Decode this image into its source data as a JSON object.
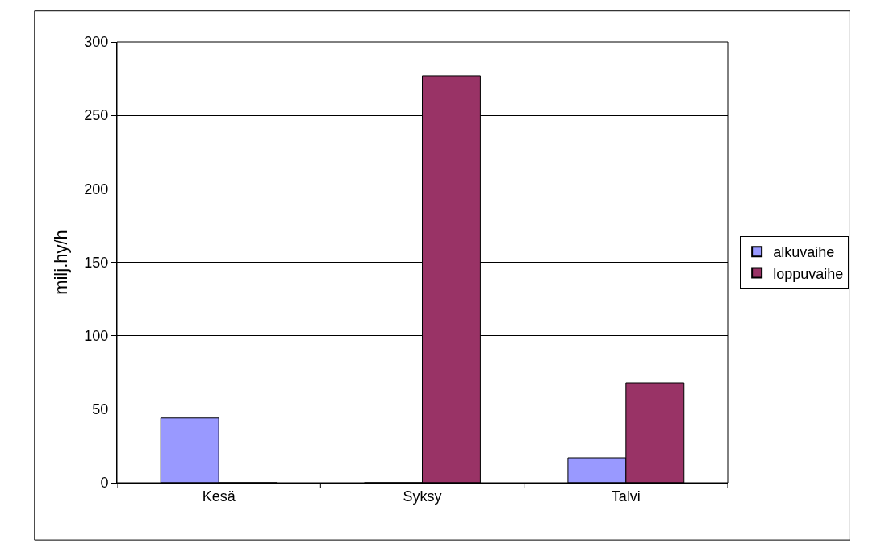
{
  "chart_data": {
    "type": "bar",
    "ylabel": "milj.hy/h",
    "categories": [
      "Kesä",
      "Syksy",
      "Talvi"
    ],
    "series": [
      {
        "name": "alkuvaihe",
        "color": "#9999ff",
        "values": [
          44,
          0,
          17
        ]
      },
      {
        "name": "loppuvaihe",
        "color": "#993366",
        "values": [
          0,
          277,
          68
        ]
      }
    ],
    "ylim": [
      0,
      300
    ],
    "yticks": [
      0,
      50,
      100,
      150,
      200,
      250,
      300
    ],
    "grid": "y",
    "legend": "right"
  }
}
